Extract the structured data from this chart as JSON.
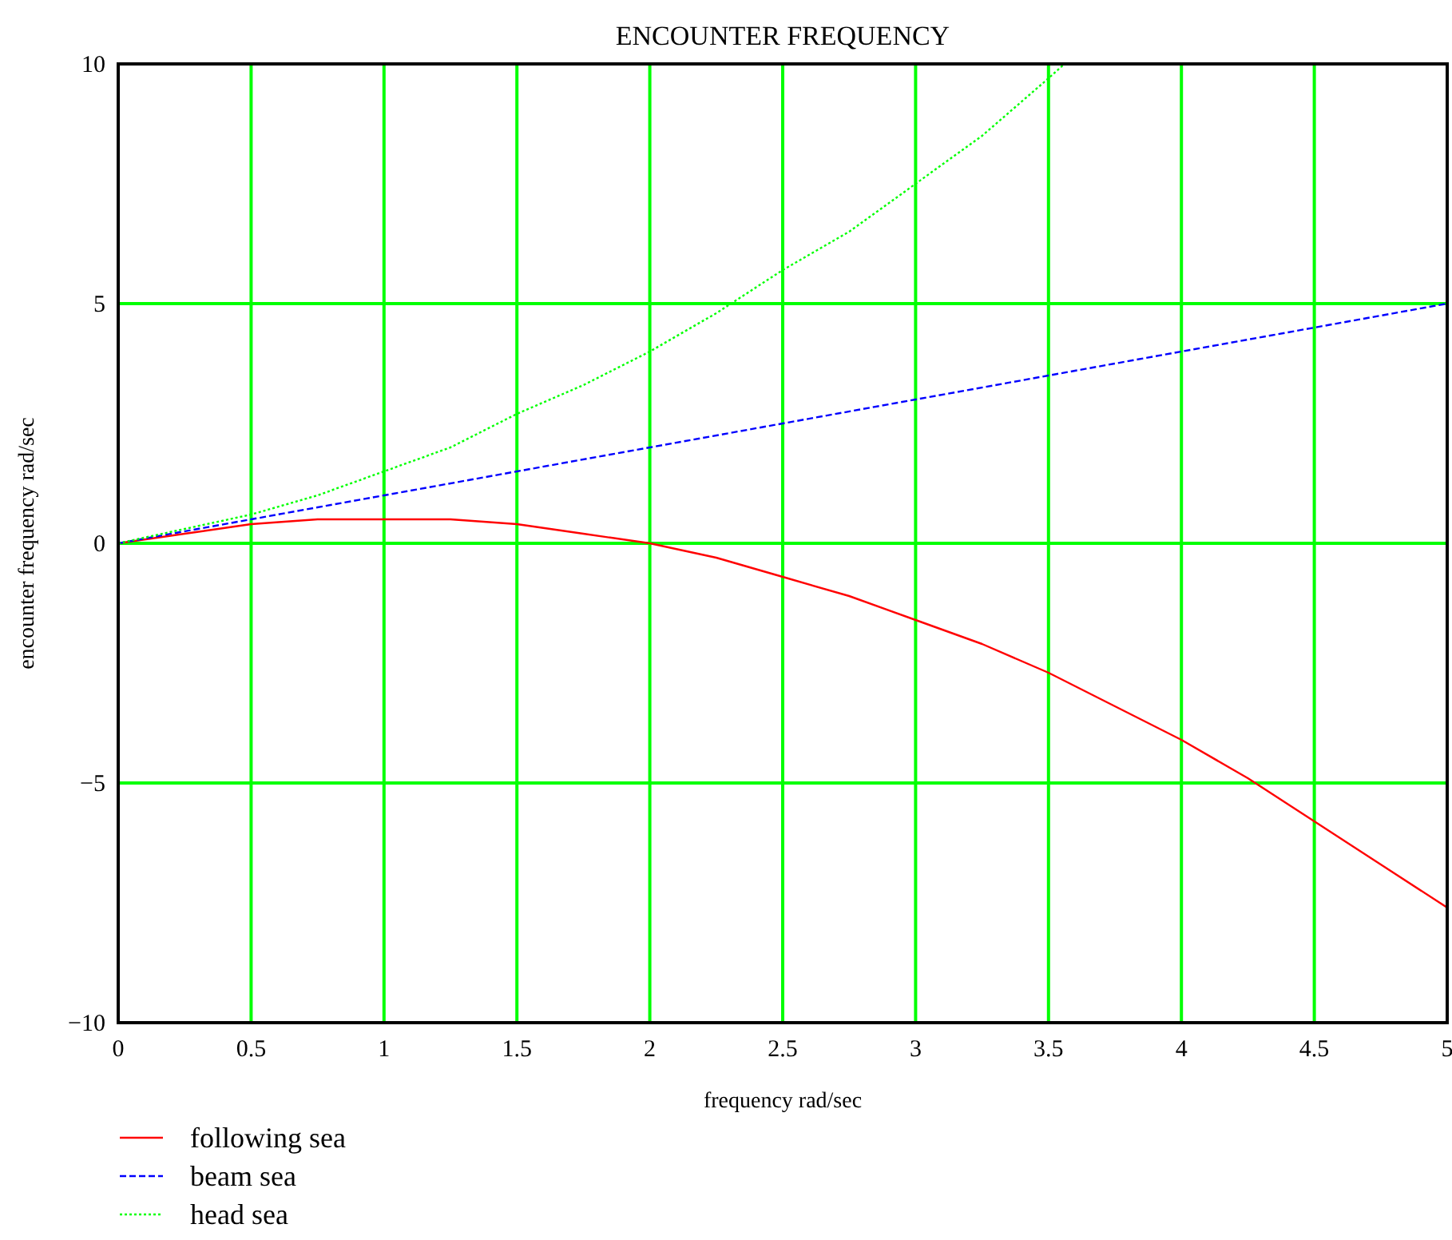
{
  "chart_data": {
    "type": "line",
    "title": "ENCOUNTER FREQUENCY",
    "xlabel": "frequency rad/sec",
    "ylabel": "encounter frequency rad/sec",
    "xlim": [
      0,
      5
    ],
    "xticks": [
      0,
      0.5,
      1,
      1.5,
      2,
      2.5,
      3,
      3.5,
      4,
      4.5,
      5
    ],
    "ylim": [
      -10,
      10
    ],
    "yticks": [
      -10,
      -5,
      0,
      5,
      10
    ],
    "grid": true,
    "legend": "bottom left",
    "series": [
      {
        "name": "following sea",
        "color": "#ff0000",
        "line_style": "solid",
        "x": [
          0,
          0.25,
          0.5,
          0.75,
          1,
          1.25,
          1.5,
          1.75,
          2,
          2.25,
          2.5,
          2.75,
          3,
          3.25,
          3.5,
          3.75,
          4,
          4.25,
          4.5,
          4.75,
          5
        ],
        "values": [
          0,
          0.2,
          0.4,
          0.5,
          0.5,
          0.5,
          0.4,
          0.2,
          0,
          -0.3,
          -0.7,
          -1.1,
          -1.6,
          -2.1,
          -2.7,
          -3.4,
          -4.1,
          -4.9,
          -5.8,
          -6.7,
          -7.6
        ]
      },
      {
        "name": "beam sea",
        "color": "#0000ff",
        "line_style": "dashed",
        "x": [
          0,
          0.5,
          1,
          1.5,
          2,
          2.5,
          3,
          3.5,
          4,
          4.5,
          5
        ],
        "values": [
          0,
          0.5,
          1,
          1.5,
          2,
          2.5,
          3,
          3.5,
          4,
          4.5,
          5
        ]
      },
      {
        "name": "head sea",
        "color": "#00ff00",
        "line_style": "dotted",
        "x": [
          0,
          0.25,
          0.5,
          0.75,
          1,
          1.25,
          1.5,
          1.75,
          2,
          2.25,
          2.5,
          2.75,
          3,
          3.25,
          3.5,
          3.56
        ],
        "values": [
          0,
          0.3,
          0.6,
          1.0,
          1.5,
          2.0,
          2.7,
          3.3,
          4.0,
          4.8,
          5.7,
          6.5,
          7.5,
          8.5,
          9.7,
          10
        ]
      }
    ]
  }
}
